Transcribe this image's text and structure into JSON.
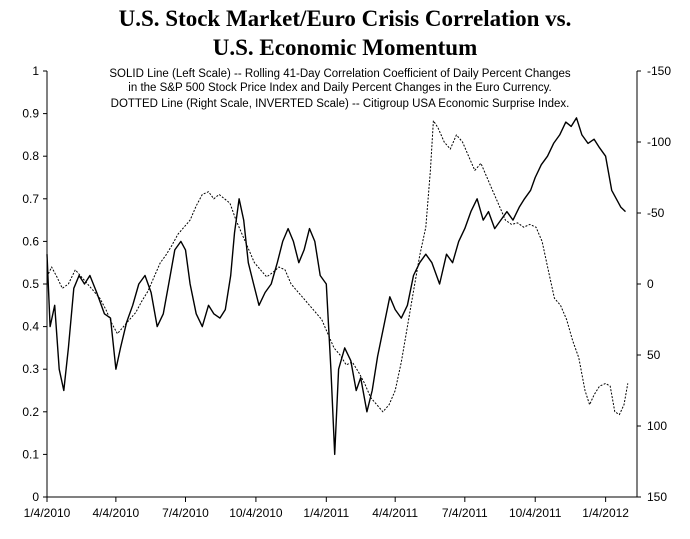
{
  "chart_data": {
    "type": "line",
    "title_lines": [
      "U.S. Stock Market/Euro Crisis Correlation vs.",
      "U.S. Economic Momentum"
    ],
    "annotation_lines": [
      "SOLID Line (Left Scale) -- Rolling 41-Day Correlation Coefficient of Daily Percent Changes",
      "in the S&P 500 Stock Price Index and Daily Percent Changes in the Euro Currency.",
      "DOTTED Line (Right Scale, INVERTED Scale) -- Citigroup USA Economic Surprise Index."
    ],
    "x_range": [
      "2010-01-04",
      "2012-02-14"
    ],
    "x_tick_labels": [
      "1/4/2010",
      "4/4/2010",
      "7/4/2010",
      "10/4/2010",
      "1/4/2011",
      "4/4/2011",
      "7/4/2011",
      "10/4/2011",
      "1/4/2012"
    ],
    "left_axis": {
      "ylim": [
        0,
        1
      ],
      "tick_labels": [
        "0",
        "0.1",
        "0.2",
        "0.3",
        "0.4",
        "0.5",
        "0.6",
        "0.7",
        "0.8",
        "0.9",
        "1"
      ]
    },
    "right_axis": {
      "inverted": true,
      "ylim": [
        -150,
        150
      ],
      "tick_labels": [
        "-150",
        "-100",
        "-50",
        "0",
        "50",
        "100",
        "150"
      ]
    },
    "series": [
      {
        "style": "solid",
        "axis": "left",
        "points": [
          [
            "2010-01-04",
            0.57
          ],
          [
            "2010-01-08",
            0.4
          ],
          [
            "2010-01-14",
            0.45
          ],
          [
            "2010-01-20",
            0.3
          ],
          [
            "2010-01-26",
            0.25
          ],
          [
            "2010-02-01",
            0.35
          ],
          [
            "2010-02-08",
            0.49
          ],
          [
            "2010-02-15",
            0.52
          ],
          [
            "2010-02-22",
            0.5
          ],
          [
            "2010-03-01",
            0.52
          ],
          [
            "2010-03-10",
            0.48
          ],
          [
            "2010-03-20",
            0.43
          ],
          [
            "2010-03-28",
            0.42
          ],
          [
            "2010-04-04",
            0.3
          ],
          [
            "2010-04-10",
            0.35
          ],
          [
            "2010-04-18",
            0.41
          ],
          [
            "2010-04-26",
            0.45
          ],
          [
            "2010-05-04",
            0.5
          ],
          [
            "2010-05-12",
            0.52
          ],
          [
            "2010-05-20",
            0.48
          ],
          [
            "2010-05-28",
            0.4
          ],
          [
            "2010-06-05",
            0.43
          ],
          [
            "2010-06-12",
            0.5
          ],
          [
            "2010-06-20",
            0.58
          ],
          [
            "2010-06-28",
            0.6
          ],
          [
            "2010-07-04",
            0.58
          ],
          [
            "2010-07-10",
            0.5
          ],
          [
            "2010-07-18",
            0.43
          ],
          [
            "2010-07-26",
            0.4
          ],
          [
            "2010-08-03",
            0.45
          ],
          [
            "2010-08-10",
            0.43
          ],
          [
            "2010-08-18",
            0.42
          ],
          [
            "2010-08-25",
            0.44
          ],
          [
            "2010-09-01",
            0.52
          ],
          [
            "2010-09-06",
            0.62
          ],
          [
            "2010-09-12",
            0.7
          ],
          [
            "2010-09-18",
            0.65
          ],
          [
            "2010-09-24",
            0.55
          ],
          [
            "2010-10-01",
            0.5
          ],
          [
            "2010-10-08",
            0.45
          ],
          [
            "2010-10-16",
            0.48
          ],
          [
            "2010-10-24",
            0.5
          ],
          [
            "2010-11-01",
            0.55
          ],
          [
            "2010-11-08",
            0.6
          ],
          [
            "2010-11-15",
            0.63
          ],
          [
            "2010-11-22",
            0.6
          ],
          [
            "2010-11-29",
            0.55
          ],
          [
            "2010-12-06",
            0.58
          ],
          [
            "2010-12-13",
            0.63
          ],
          [
            "2010-12-20",
            0.6
          ],
          [
            "2010-12-27",
            0.52
          ],
          [
            "2011-01-04",
            0.5
          ],
          [
            "2011-01-10",
            0.3
          ],
          [
            "2011-01-15",
            0.1
          ],
          [
            "2011-01-20",
            0.3
          ],
          [
            "2011-01-28",
            0.35
          ],
          [
            "2011-02-05",
            0.32
          ],
          [
            "2011-02-12",
            0.25
          ],
          [
            "2011-02-18",
            0.28
          ],
          [
            "2011-02-26",
            0.2
          ],
          [
            "2011-03-05",
            0.25
          ],
          [
            "2011-03-12",
            0.33
          ],
          [
            "2011-03-20",
            0.4
          ],
          [
            "2011-03-28",
            0.47
          ],
          [
            "2011-04-04",
            0.44
          ],
          [
            "2011-04-12",
            0.42
          ],
          [
            "2011-04-20",
            0.45
          ],
          [
            "2011-04-28",
            0.52
          ],
          [
            "2011-05-06",
            0.55
          ],
          [
            "2011-05-14",
            0.57
          ],
          [
            "2011-05-22",
            0.55
          ],
          [
            "2011-06-01",
            0.5
          ],
          [
            "2011-06-10",
            0.57
          ],
          [
            "2011-06-18",
            0.55
          ],
          [
            "2011-06-26",
            0.6
          ],
          [
            "2011-07-04",
            0.63
          ],
          [
            "2011-07-12",
            0.67
          ],
          [
            "2011-07-20",
            0.7
          ],
          [
            "2011-07-28",
            0.65
          ],
          [
            "2011-08-04",
            0.67
          ],
          [
            "2011-08-12",
            0.63
          ],
          [
            "2011-08-20",
            0.65
          ],
          [
            "2011-08-28",
            0.67
          ],
          [
            "2011-09-05",
            0.65
          ],
          [
            "2011-09-13",
            0.68
          ],
          [
            "2011-09-20",
            0.7
          ],
          [
            "2011-09-28",
            0.72
          ],
          [
            "2011-10-04",
            0.75
          ],
          [
            "2011-10-12",
            0.78
          ],
          [
            "2011-10-20",
            0.8
          ],
          [
            "2011-10-28",
            0.83
          ],
          [
            "2011-11-05",
            0.85
          ],
          [
            "2011-11-13",
            0.88
          ],
          [
            "2011-11-20",
            0.87
          ],
          [
            "2011-11-27",
            0.89
          ],
          [
            "2011-12-04",
            0.85
          ],
          [
            "2011-12-12",
            0.83
          ],
          [
            "2011-12-20",
            0.84
          ],
          [
            "2011-12-27",
            0.82
          ],
          [
            "2012-01-04",
            0.8
          ],
          [
            "2012-01-12",
            0.72
          ],
          [
            "2012-01-18",
            0.7
          ],
          [
            "2012-01-24",
            0.68
          ],
          [
            "2012-01-30",
            0.67
          ]
        ]
      },
      {
        "style": "dotted",
        "axis": "right",
        "points": [
          [
            "2010-01-04",
            -5
          ],
          [
            "2010-01-10",
            -12
          ],
          [
            "2010-01-17",
            -5
          ],
          [
            "2010-01-24",
            3
          ],
          [
            "2010-02-01",
            0
          ],
          [
            "2010-02-10",
            -10
          ],
          [
            "2010-02-18",
            -5
          ],
          [
            "2010-02-26",
            0
          ],
          [
            "2010-03-06",
            5
          ],
          [
            "2010-03-14",
            10
          ],
          [
            "2010-03-22",
            18
          ],
          [
            "2010-03-30",
            28
          ],
          [
            "2010-04-06",
            35
          ],
          [
            "2010-04-14",
            30
          ],
          [
            "2010-04-22",
            25
          ],
          [
            "2010-04-30",
            20
          ],
          [
            "2010-05-08",
            12
          ],
          [
            "2010-05-16",
            5
          ],
          [
            "2010-05-24",
            -5
          ],
          [
            "2010-06-01",
            -15
          ],
          [
            "2010-06-08",
            -20
          ],
          [
            "2010-06-16",
            -27
          ],
          [
            "2010-06-24",
            -35
          ],
          [
            "2010-07-02",
            -40
          ],
          [
            "2010-07-10",
            -45
          ],
          [
            "2010-07-18",
            -55
          ],
          [
            "2010-07-26",
            -63
          ],
          [
            "2010-08-03",
            -65
          ],
          [
            "2010-08-10",
            -60
          ],
          [
            "2010-08-17",
            -63
          ],
          [
            "2010-08-24",
            -60
          ],
          [
            "2010-08-31",
            -57
          ],
          [
            "2010-09-08",
            -45
          ],
          [
            "2010-09-16",
            -35
          ],
          [
            "2010-09-24",
            -25
          ],
          [
            "2010-10-02",
            -15
          ],
          [
            "2010-10-10",
            -10
          ],
          [
            "2010-10-18",
            -5
          ],
          [
            "2010-10-26",
            -8
          ],
          [
            "2010-11-03",
            -12
          ],
          [
            "2010-11-11",
            -10
          ],
          [
            "2010-11-19",
            0
          ],
          [
            "2010-11-27",
            5
          ],
          [
            "2010-12-05",
            10
          ],
          [
            "2010-12-13",
            15
          ],
          [
            "2010-12-21",
            20
          ],
          [
            "2010-12-29",
            25
          ],
          [
            "2011-01-06",
            35
          ],
          [
            "2011-01-14",
            45
          ],
          [
            "2011-01-22",
            50
          ],
          [
            "2011-01-30",
            57
          ],
          [
            "2011-02-07",
            55
          ],
          [
            "2011-02-15",
            62
          ],
          [
            "2011-02-23",
            70
          ],
          [
            "2011-03-03",
            80
          ],
          [
            "2011-03-11",
            85
          ],
          [
            "2011-03-19",
            90
          ],
          [
            "2011-03-27",
            85
          ],
          [
            "2011-04-04",
            75
          ],
          [
            "2011-04-12",
            55
          ],
          [
            "2011-04-20",
            30
          ],
          [
            "2011-04-28",
            5
          ],
          [
            "2011-05-06",
            -20
          ],
          [
            "2011-05-14",
            -40
          ],
          [
            "2011-05-20",
            -80
          ],
          [
            "2011-05-24",
            -115
          ],
          [
            "2011-05-30",
            -110
          ],
          [
            "2011-06-07",
            -100
          ],
          [
            "2011-06-15",
            -95
          ],
          [
            "2011-06-23",
            -105
          ],
          [
            "2011-07-01",
            -100
          ],
          [
            "2011-07-09",
            -90
          ],
          [
            "2011-07-17",
            -80
          ],
          [
            "2011-07-25",
            -85
          ],
          [
            "2011-08-02",
            -75
          ],
          [
            "2011-08-10",
            -65
          ],
          [
            "2011-08-18",
            -55
          ],
          [
            "2011-08-26",
            -45
          ],
          [
            "2011-09-03",
            -42
          ],
          [
            "2011-09-11",
            -43
          ],
          [
            "2011-09-19",
            -40
          ],
          [
            "2011-09-27",
            -42
          ],
          [
            "2011-10-05",
            -40
          ],
          [
            "2011-10-13",
            -30
          ],
          [
            "2011-10-21",
            -10
          ],
          [
            "2011-10-29",
            10
          ],
          [
            "2011-11-06",
            15
          ],
          [
            "2011-11-14",
            25
          ],
          [
            "2011-11-22",
            40
          ],
          [
            "2011-11-30",
            52
          ],
          [
            "2011-12-08",
            75
          ],
          [
            "2011-12-14",
            85
          ],
          [
            "2011-12-20",
            78
          ],
          [
            "2011-12-27",
            72
          ],
          [
            "2012-01-04",
            70
          ],
          [
            "2012-01-10",
            72
          ],
          [
            "2012-01-16",
            90
          ],
          [
            "2012-01-22",
            92
          ],
          [
            "2012-01-28",
            85
          ],
          [
            "2012-02-02",
            70
          ]
        ]
      }
    ]
  }
}
